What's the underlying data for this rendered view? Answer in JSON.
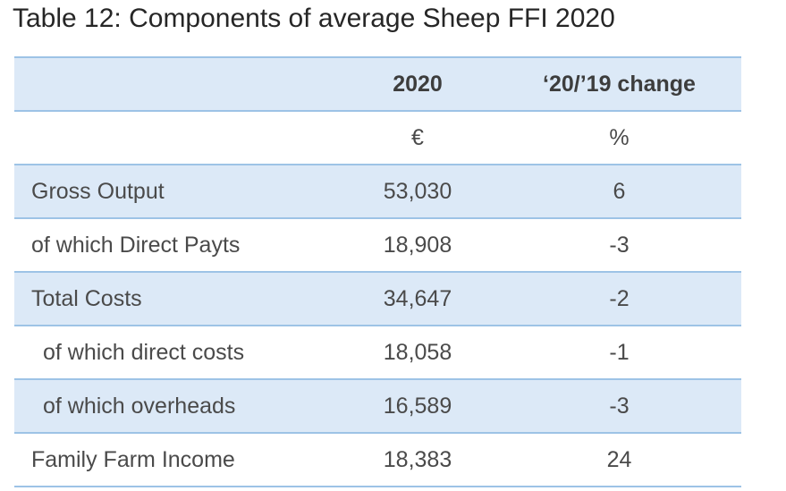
{
  "title": "Table 12: Components of average Sheep FFI 2020",
  "header": {
    "label": "",
    "col_value": "2020",
    "col_change": "‘20/’19 change"
  },
  "units": {
    "label": "",
    "value": "€",
    "change": "%"
  },
  "rows": [
    {
      "label": "Gross Output",
      "value": "53,030",
      "change": "6"
    },
    {
      "label": "of which Direct Payts",
      "value": "18,908",
      "change": "-3"
    },
    {
      "label": "Total Costs",
      "value": "34,647",
      "change": "-2"
    },
    {
      "label": "of which direct costs",
      "value": "18,058",
      "change": "-1"
    },
    {
      "label": "of which overheads",
      "value": "16,589",
      "change": "-3"
    },
    {
      "label": "Family Farm Income",
      "value": "18,383",
      "change": "24"
    }
  ],
  "colors": {
    "shade": "#dce9f7",
    "rule": "#9dc3e6"
  }
}
